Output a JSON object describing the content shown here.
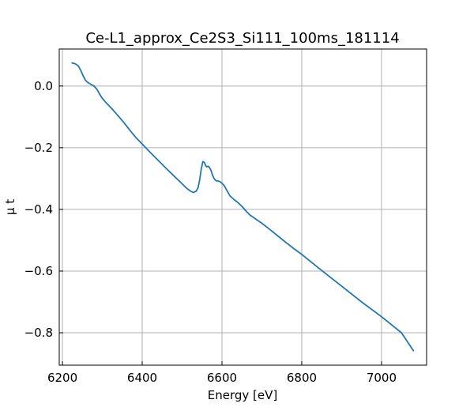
{
  "chart_data": {
    "type": "line",
    "title": "Ce-L1_approx_Ce2S3_Si111_100ms_181114",
    "xlabel": "Energy [eV]",
    "ylabel": "μ t",
    "xlim": [
      6192,
      7113
    ],
    "ylim": [
      -0.905,
      0.12
    ],
    "xticks": [
      6200,
      6400,
      6600,
      6800,
      7000
    ],
    "yticks": [
      0.0,
      -0.2,
      -0.4,
      -0.6,
      -0.8
    ],
    "ytick_labels": [
      "0.0",
      "−0.2",
      "−0.4",
      "−0.6",
      "−0.8"
    ],
    "grid": true,
    "tick_direction": "in",
    "color": "#1f77b4",
    "series": [
      {
        "x": [
          6224,
          6232,
          6240,
          6246,
          6252,
          6258,
          6265,
          6272,
          6280,
          6287,
          6294,
          6300,
          6310,
          6325,
          6340,
          6355,
          6370,
          6385,
          6400,
          6420,
          6440,
          6460,
          6480,
          6500,
          6510,
          6520,
          6528,
          6535,
          6540,
          6544,
          6548,
          6552,
          6556,
          6559,
          6562,
          6565,
          6568,
          6572,
          6576,
          6580,
          6585,
          6590,
          6595,
          6600,
          6605,
          6610,
          6615,
          6620,
          6625,
          6630,
          6640,
          6650,
          6660,
          6670,
          6680,
          6700,
          6720,
          6740,
          6760,
          6780,
          6800,
          6850,
          6900,
          6950,
          7000,
          7050,
          7080
        ],
        "y": [
          0.075,
          0.072,
          0.065,
          0.05,
          0.033,
          0.018,
          0.01,
          0.005,
          -0.001,
          -0.012,
          -0.028,
          -0.04,
          -0.055,
          -0.075,
          -0.097,
          -0.12,
          -0.145,
          -0.168,
          -0.188,
          -0.215,
          -0.241,
          -0.267,
          -0.292,
          -0.317,
          -0.33,
          -0.34,
          -0.345,
          -0.341,
          -0.33,
          -0.305,
          -0.27,
          -0.245,
          -0.248,
          -0.258,
          -0.262,
          -0.26,
          -0.263,
          -0.272,
          -0.288,
          -0.3,
          -0.307,
          -0.308,
          -0.31,
          -0.315,
          -0.322,
          -0.333,
          -0.345,
          -0.356,
          -0.362,
          -0.368,
          -0.378,
          -0.39,
          -0.405,
          -0.418,
          -0.427,
          -0.445,
          -0.465,
          -0.486,
          -0.507,
          -0.527,
          -0.546,
          -0.598,
          -0.649,
          -0.7,
          -0.748,
          -0.8,
          -0.858
        ]
      }
    ]
  }
}
